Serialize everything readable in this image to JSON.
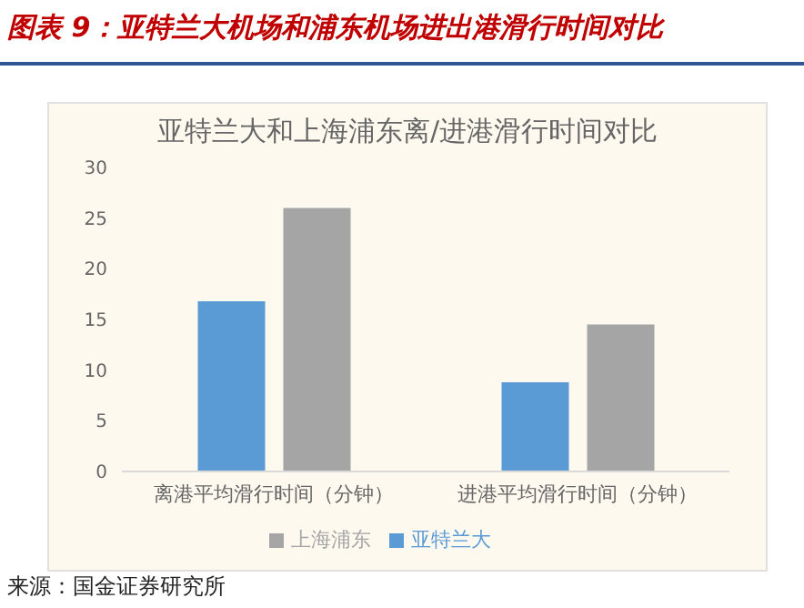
{
  "chart_data": {
    "type": "bar",
    "title": "图表 9：亚特兰大机场和浦东机场进出港滑行时间对比",
    "subtitle": "亚特兰大和上海浦东离/进港滑行时间对比",
    "categories": [
      "离港平均滑行时间（分钟）",
      "进港平均滑行时间（分钟）"
    ],
    "series": [
      {
        "name": "亚特兰大",
        "color": "#5b9bd5",
        "values": [
          16.8,
          8.8
        ]
      },
      {
        "name": "上海浦东",
        "color": "#a5a5a5",
        "values": [
          26.0,
          14.5
        ]
      }
    ],
    "ylim": [
      0,
      30
    ],
    "yticks": [
      0,
      5,
      10,
      15,
      20,
      25,
      30
    ],
    "grid": false,
    "legend": "bottom",
    "annotations": [
      "来源：国金证券研究所"
    ]
  }
}
